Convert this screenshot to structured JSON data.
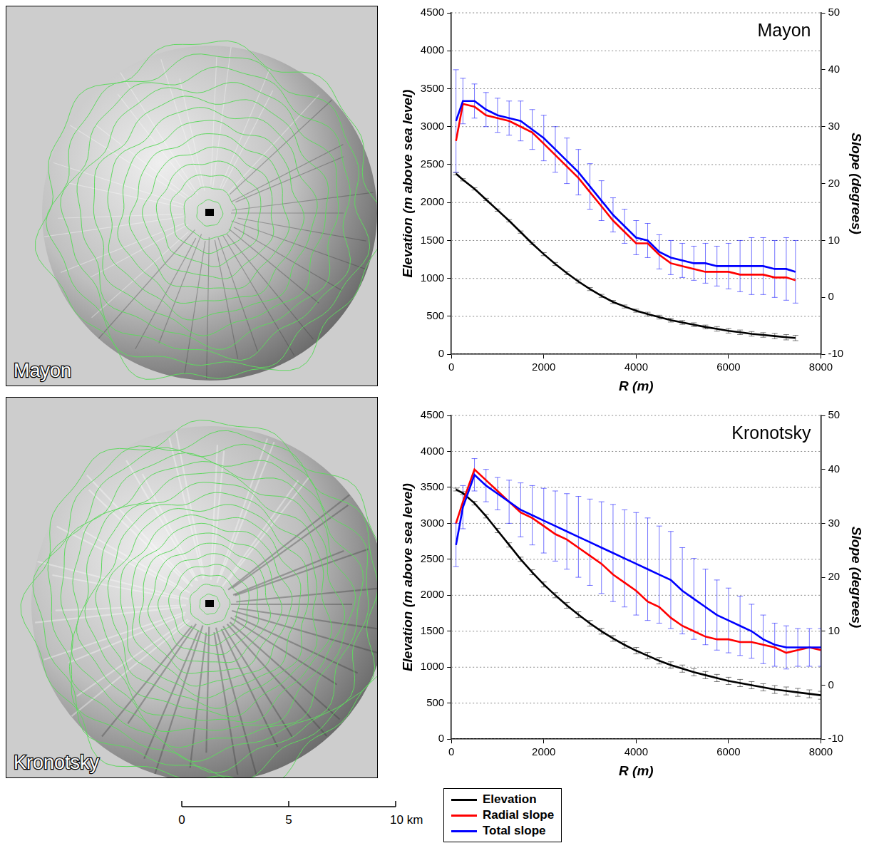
{
  "maps": [
    {
      "label": "Mayon"
    },
    {
      "label": "Kronotsky"
    }
  ],
  "scale_bar": {
    "ticks": [
      0,
      5,
      {
        "value": 10,
        "label": "10 km"
      }
    ]
  },
  "chart_data": [
    {
      "type": "line",
      "title": "Mayon",
      "x_label": "R (m)",
      "y_label": "Elevation (m above sea level)",
      "y2_label": "Slope (degrees)",
      "x": [
        100,
        250,
        500,
        750,
        1000,
        1250,
        1500,
        1750,
        2000,
        2250,
        2500,
        2750,
        3000,
        3250,
        3500,
        3750,
        4000,
        4250,
        4500,
        4750,
        5000,
        5250,
        5500,
        5750,
        6000,
        6250,
        6500,
        6750,
        7000,
        7250,
        7450
      ],
      "xlim": [
        0,
        8000
      ],
      "xticks": [
        0,
        2000,
        4000,
        6000,
        8000
      ],
      "ylim": [
        0,
        4500
      ],
      "yticks": [
        0,
        500,
        1000,
        1500,
        2000,
        2500,
        3000,
        3500,
        4000,
        4500
      ],
      "y2lim": [
        -10,
        50
      ],
      "y2ticks": [
        -10,
        0,
        10,
        20,
        30,
        40,
        50
      ],
      "grid": "y",
      "series": [
        {
          "name": "Elevation",
          "color": "#000000",
          "axis": "y",
          "values": [
            2380,
            2300,
            2180,
            2040,
            1900,
            1760,
            1610,
            1460,
            1320,
            1190,
            1070,
            960,
            860,
            770,
            690,
            630,
            575,
            530,
            490,
            450,
            420,
            390,
            360,
            335,
            310,
            290,
            270,
            255,
            240,
            225,
            215
          ],
          "errors": [
            15,
            15,
            15,
            15,
            15,
            15,
            15,
            15,
            20,
            20,
            20,
            20,
            20,
            20,
            20,
            20,
            20,
            25,
            25,
            25,
            25,
            25,
            25,
            30,
            30,
            30,
            30,
            30,
            35,
            35,
            35
          ]
        },
        {
          "name": "Radial slope",
          "color": "#ff0000",
          "axis": "y2",
          "values": [
            27.5,
            34,
            33.5,
            32,
            31.5,
            31,
            30,
            29,
            27,
            25,
            23,
            21,
            18.5,
            16,
            13.5,
            11.5,
            9.5,
            9.5,
            7.5,
            6,
            5.5,
            5,
            4.5,
            4.5,
            4.5,
            4,
            4,
            4,
            3.5,
            3.5,
            3
          ]
        },
        {
          "name": "Total slope",
          "color": "#0000ff",
          "axis": "y2",
          "values": [
            31,
            34.5,
            34.5,
            33,
            32,
            31.5,
            31,
            29.5,
            28,
            26,
            24,
            22,
            19.5,
            17,
            14.5,
            12.5,
            10.5,
            10,
            8,
            7,
            6.5,
            6,
            6,
            5.5,
            5.5,
            5.5,
            5.5,
            5.5,
            5,
            5,
            4.5
          ],
          "errors": [
            9,
            4,
            3,
            3,
            3,
            3,
            3.5,
            3.5,
            4,
            4,
            4,
            4,
            4,
            3.5,
            3,
            3,
            3,
            3,
            3,
            3,
            3,
            3,
            3.5,
            3.5,
            4,
            4.5,
            5,
            5,
            5,
            5.5,
            5.5
          ]
        }
      ]
    },
    {
      "type": "line",
      "title": "Kronotsky",
      "x_label": "R (m)",
      "y_label": "Elevation (m above sea level)",
      "y2_label": "Slope (degrees)",
      "x": [
        100,
        250,
        500,
        750,
        1000,
        1250,
        1500,
        1750,
        2000,
        2250,
        2500,
        2750,
        3000,
        3250,
        3500,
        3750,
        4000,
        4250,
        4500,
        4750,
        5000,
        5250,
        5500,
        5750,
        6000,
        6250,
        6500,
        6750,
        7000,
        7250,
        7500,
        7750,
        8000
      ],
      "xlim": [
        0,
        8000
      ],
      "xticks": [
        0,
        2000,
        4000,
        6000,
        8000
      ],
      "ylim": [
        0,
        4500
      ],
      "yticks": [
        0,
        500,
        1000,
        1500,
        2000,
        2500,
        3000,
        3500,
        4000,
        4500
      ],
      "y2lim": [
        -10,
        50
      ],
      "y2ticks": [
        -10,
        0,
        10,
        20,
        30,
        40,
        50
      ],
      "grid": "y",
      "legend": "bottom",
      "series": [
        {
          "name": "Elevation",
          "color": "#000000",
          "axis": "y",
          "values": [
            3470,
            3420,
            3280,
            3100,
            2900,
            2700,
            2500,
            2320,
            2150,
            2000,
            1860,
            1730,
            1610,
            1500,
            1400,
            1310,
            1230,
            1160,
            1090,
            1030,
            980,
            930,
            890,
            850,
            810,
            780,
            750,
            720,
            690,
            670,
            650,
            630,
            610
          ],
          "errors": [
            20,
            20,
            25,
            25,
            30,
            30,
            30,
            35,
            35,
            35,
            40,
            40,
            40,
            40,
            40,
            45,
            45,
            45,
            45,
            45,
            50,
            50,
            50,
            50,
            50,
            50,
            50,
            50,
            55,
            55,
            55,
            55,
            55
          ]
        },
        {
          "name": "Radial slope",
          "color": "#ff0000",
          "axis": "y2",
          "values": [
            30,
            34,
            40,
            38,
            36,
            34,
            32,
            31,
            29.5,
            28,
            27,
            25.5,
            24,
            22.5,
            20.5,
            19,
            17.5,
            15.5,
            14.5,
            12.5,
            11,
            10,
            9,
            8.5,
            8.5,
            8,
            8,
            7.5,
            7,
            6,
            6.5,
            7,
            6.5
          ]
        },
        {
          "name": "Total slope",
          "color": "#0000ff",
          "axis": "y2",
          "values": [
            26,
            33,
            39,
            37,
            35.5,
            34,
            32.5,
            31.5,
            30.5,
            29.5,
            28.5,
            27.5,
            26.5,
            25.5,
            24.5,
            23.5,
            22.5,
            21.5,
            20.5,
            19.5,
            17.5,
            16,
            14.5,
            13,
            12,
            11,
            10,
            8.5,
            7.5,
            7,
            7,
            7,
            7
          ],
          "errors": [
            4,
            4,
            3,
            3,
            3,
            4,
            5,
            5.5,
            6,
            6.5,
            7,
            7.5,
            8,
            8.5,
            9,
            9,
            9.5,
            9.5,
            9,
            9,
            8,
            7.5,
            7,
            6.5,
            6,
            5.5,
            5,
            4.5,
            4,
            4,
            3.5,
            3.5,
            3.5
          ]
        }
      ]
    }
  ]
}
